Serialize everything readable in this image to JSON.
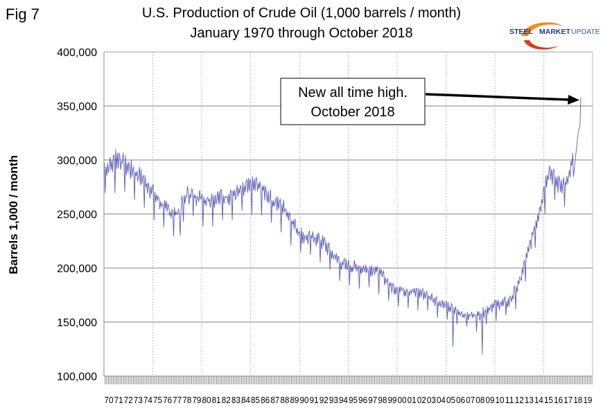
{
  "fig_label": "Fig 7",
  "logo": {
    "text_bold": "STEEL",
    "text_mid": "MARKET",
    "text_light": "UPDATE"
  },
  "chart_data": {
    "type": "line",
    "title": "U.S. Production of Crude Oil (1,000 barrels / month)",
    "subtitle": "January 1970 through October 2018",
    "xlabel": "",
    "ylabel": "Barrels 1,000 / month",
    "ylim": [
      100000,
      400000
    ],
    "yticks": [
      100000,
      150000,
      200000,
      250000,
      300000,
      350000,
      400000
    ],
    "ytick_labels": [
      "100,000",
      "150,000",
      "200,000",
      "250,000",
      "300,000",
      "350,000",
      "400,000"
    ],
    "xtick_labels": [
      "70",
      "71",
      "72",
      "73",
      "74",
      "75",
      "76",
      "77",
      "78",
      "79",
      "80",
      "81",
      "82",
      "83",
      "84",
      "85",
      "86",
      "87",
      "88",
      "89",
      "90",
      "91",
      "92",
      "93",
      "94",
      "95",
      "96",
      "97",
      "98",
      "99",
      "00",
      "01",
      "02",
      "03",
      "04",
      "05",
      "06",
      "07",
      "08",
      "09",
      "10",
      "11",
      "12",
      "13",
      "14",
      "15",
      "16",
      "17",
      "18",
      "19"
    ],
    "x_range": [
      "1970-01",
      "2019-12"
    ],
    "grid": "horizontal solid, vertical dotted",
    "series": [
      {
        "name": "U.S. crude oil production",
        "color": "#3b3fa8",
        "frequency": "monthly",
        "annual_level": {
          "1970": 292000,
          "1971": 300000,
          "1972": 291000,
          "1973": 285000,
          "1974": 275000,
          "1975": 262000,
          "1976": 252000,
          "1977": 249000,
          "1978": 267000,
          "1979": 265000,
          "1980": 262000,
          "1981": 263000,
          "1982": 265000,
          "1983": 267000,
          "1984": 272000,
          "1985": 276000,
          "1986": 269000,
          "1987": 259000,
          "1988": 254000,
          "1989": 238000,
          "1990": 227000,
          "1991": 227000,
          "1992": 222000,
          "1993": 210000,
          "1994": 202000,
          "1995": 200000,
          "1996": 198000,
          "1997": 198000,
          "1998": 192000,
          "1999": 181000,
          "2000": 179000,
          "2001": 177000,
          "2002": 176000,
          "2003": 172000,
          "2004": 166000,
          "2005": 162000,
          "2006": 157000,
          "2007": 155000,
          "2008": 156000,
          "2009": 163000,
          "2010": 166000,
          "2011": 168000,
          "2012": 185000,
          "2013": 217000,
          "2014": 250000,
          "2015": 290000,
          "2016": 276000,
          "2017": 278000,
          "2018": 322000
        },
        "notable_points": [
          {
            "date": "1971-03",
            "value": 310000
          },
          {
            "date": "1977-10",
            "value": 230000
          },
          {
            "date": "2005-09",
            "value": 127000
          },
          {
            "date": "2008-09",
            "value": 120000
          },
          {
            "date": "2018-10",
            "value": 358000
          }
        ],
        "end": "2018-10"
      }
    ],
    "annotation": {
      "line1": "New all time high.",
      "line2": "October 2018",
      "points_to": "2018-10"
    }
  }
}
